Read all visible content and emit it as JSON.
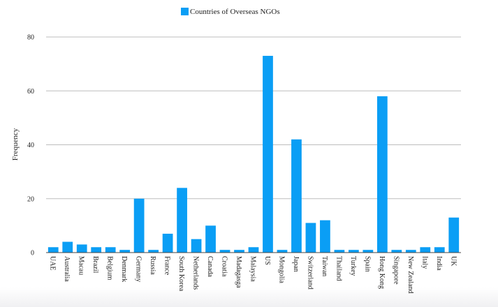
{
  "chart_data": {
    "type": "bar",
    "ylabel": "Frequency",
    "xlabel": "",
    "ylim": [
      0,
      80
    ],
    "yticks": [
      0,
      20,
      40,
      60,
      80
    ],
    "grid": true,
    "legend_position": "top-center",
    "bar_color": "#0a9ef5",
    "categories": [
      "UAE",
      "Australia",
      "Macau",
      "Brazil",
      "Belgium",
      "Denmark",
      "Germany",
      "Russia",
      "France",
      "South Korea",
      "Netherlands",
      "Canada",
      "Croatia",
      "Madagasga",
      "Malaysia",
      "US",
      "Mongolia",
      "Japan",
      "Switzerland",
      "Taiwan",
      "Thailand",
      "Turkey",
      "Spain",
      "Hong Kong",
      "Singapore",
      "New Zealand",
      "Italy",
      "India",
      "UK"
    ],
    "series": [
      {
        "name": "Countries of Overseas NGOs",
        "values": [
          2,
          4,
          3,
          2,
          2,
          1,
          20,
          1,
          7,
          24,
          5,
          10,
          1,
          1,
          2,
          73,
          1,
          42,
          11,
          12,
          1,
          1,
          1,
          58,
          1,
          1,
          2,
          2,
          13
        ]
      }
    ]
  }
}
